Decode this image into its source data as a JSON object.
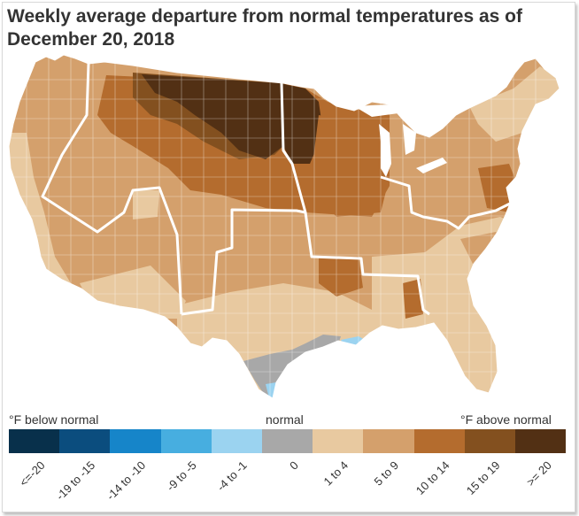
{
  "title": "Weekly average departure from normal temperatures as of December 20, 2018",
  "legend": {
    "below_label": "°F below normal",
    "normal_label": "normal",
    "above_label": "°F above normal",
    "bins": [
      {
        "label": "<=-20",
        "color": "#08304b"
      },
      {
        "label": "-19 to -15",
        "color": "#0b4d7e"
      },
      {
        "label": "-14 to -10",
        "color": "#1685c9"
      },
      {
        "label": "-9 to -5",
        "color": "#47aee0"
      },
      {
        "label": "-4 to -1",
        "color": "#9bd3f0"
      },
      {
        "label": "0",
        "color": "#a8a8a8"
      },
      {
        "label": "1 to 4",
        "color": "#e8c9a0"
      },
      {
        "label": "5 to 9",
        "color": "#d4a06c"
      },
      {
        "label": "10 to 14",
        "color": "#b46c2e"
      },
      {
        "label": "15 to 19",
        "color": "#83501f"
      },
      {
        "label": ">= 20",
        "color": "#523014"
      }
    ]
  },
  "map": {
    "colors": {
      "light": "#e8c9a0",
      "tan": "#d4a06c",
      "orange": "#b46c2e",
      "brown": "#83501f",
      "dark": "#523014",
      "gray": "#a8a8a8",
      "blue": "#9bd3f0"
    }
  }
}
